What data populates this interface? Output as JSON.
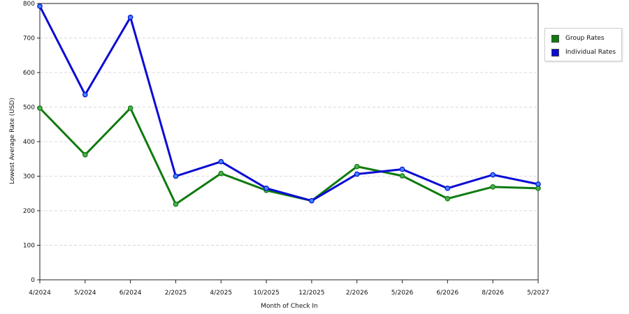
{
  "chart_data": {
    "type": "line",
    "title": "",
    "xlabel": "Month of Check In",
    "ylabel": "Lowest Average Rate (USD)",
    "ylim": [
      0,
      800
    ],
    "yticks": [
      0,
      100,
      200,
      300,
      400,
      500,
      600,
      700,
      800
    ],
    "grid": true,
    "legend_position": "right",
    "categories": [
      "4/2024",
      "5/2024",
      "6/2024",
      "2/2025",
      "4/2025",
      "10/2025",
      "12/2025",
      "2/2026",
      "5/2026",
      "6/2026",
      "8/2026",
      "5/2027"
    ],
    "series": [
      {
        "name": "Group Rates",
        "color": "#0f7a0f",
        "marker": "#4caf50",
        "values": [
          497,
          362,
          497,
          219,
          308,
          259,
          229,
          328,
          301,
          235,
          269,
          265
        ]
      },
      {
        "name": "Individual Rates",
        "color": "#0a0ad4",
        "marker": "#3b8bff",
        "values": [
          792,
          536,
          760,
          300,
          342,
          265,
          229,
          306,
          320,
          265,
          304,
          277
        ]
      }
    ]
  }
}
